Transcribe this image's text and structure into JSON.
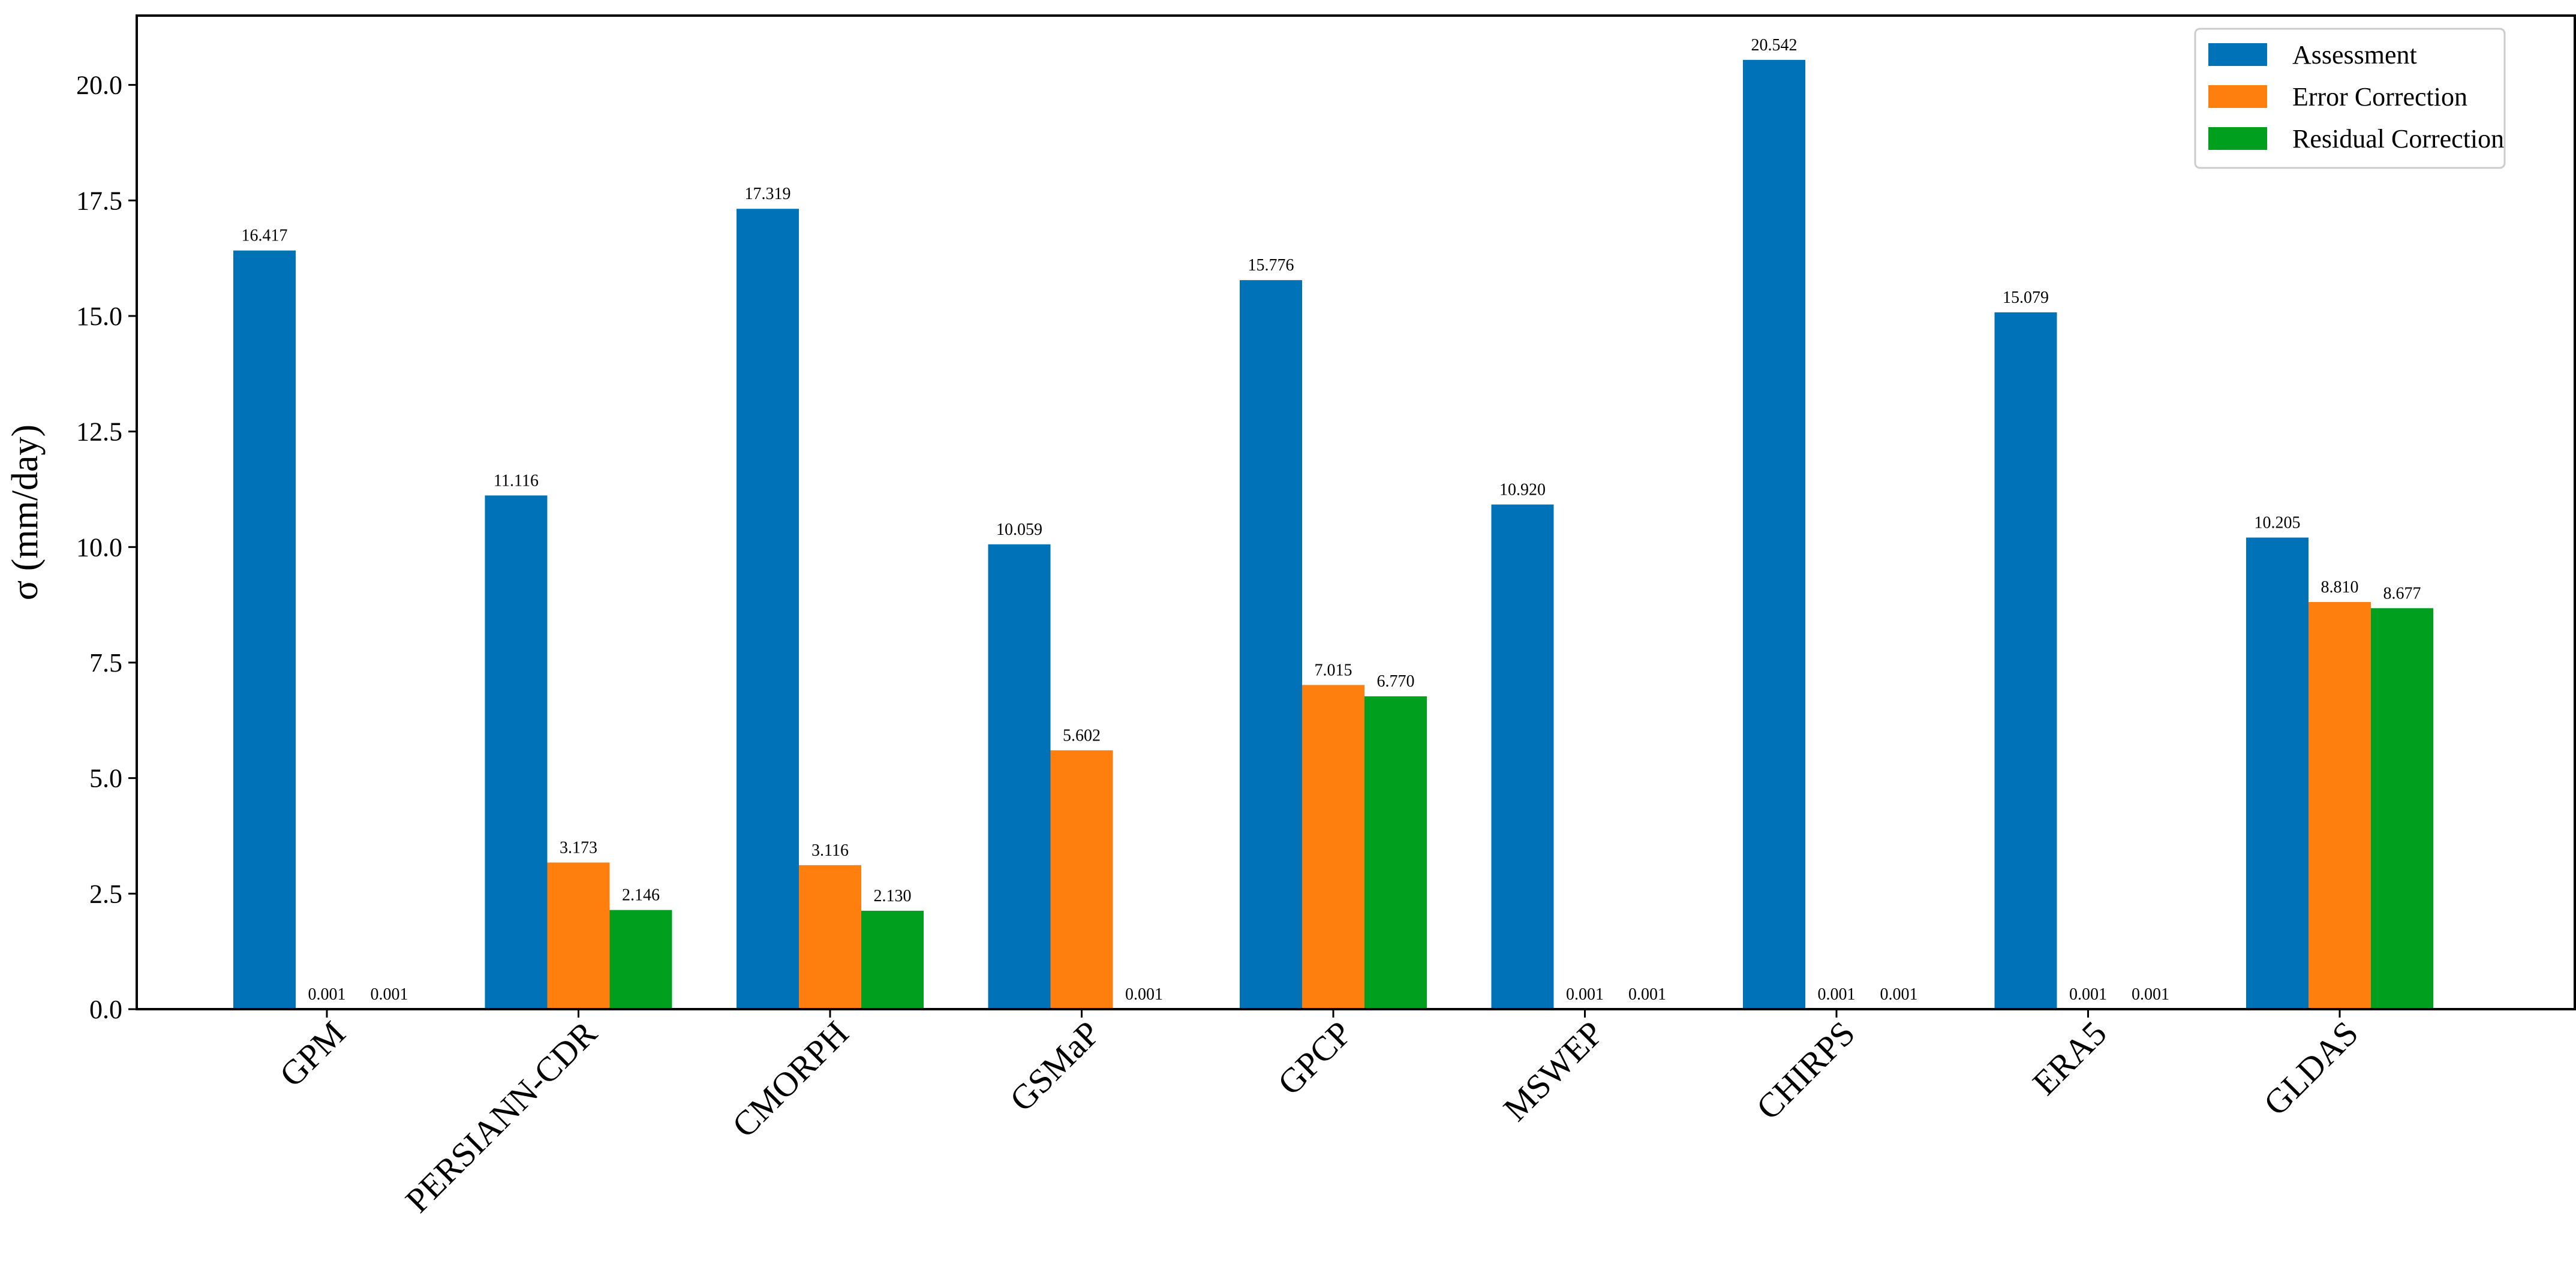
{
  "chart_data": {
    "type": "bar",
    "title": "",
    "xlabel": "",
    "ylabel": "σ (mm/day)",
    "ylim": [
      0,
      21.5
    ],
    "yticks": [
      "0.0",
      "2.5",
      "5.0",
      "7.5",
      "10.0",
      "12.5",
      "15.0",
      "17.5",
      "20.0"
    ],
    "ytick_values": [
      0,
      2.5,
      5,
      7.5,
      10,
      12.5,
      15,
      17.5,
      20
    ],
    "categories": [
      "GPM",
      "PERSIANN-CDR",
      "CMORPH",
      "GSMaP",
      "GPCP",
      "MSWEP",
      "CHIRPS",
      "ERA5",
      "GLDAS"
    ],
    "series": [
      {
        "name": "Assessment",
        "color": "#0072b8",
        "values": [
          16.417,
          11.116,
          17.319,
          10.059,
          15.776,
          10.92,
          20.542,
          15.079,
          10.205
        ],
        "labels": [
          "16.417",
          "11.116",
          "17.319",
          "10.059",
          "15.776",
          "10.920",
          "20.542",
          "15.079",
          "10.205"
        ]
      },
      {
        "name": "Error Correction",
        "color": "#ff7f0e",
        "values": [
          0.001,
          3.173,
          3.116,
          5.602,
          7.015,
          0.001,
          0.001,
          0.001,
          8.81
        ],
        "labels": [
          "0.001",
          "3.173",
          "3.116",
          "5.602",
          "7.015",
          "0.001",
          "0.001",
          "0.001",
          "8.810"
        ]
      },
      {
        "name": "Residual Correction",
        "color": "#00a01e",
        "values": [
          0.001,
          2.146,
          2.13,
          0.001,
          6.77,
          0.001,
          0.001,
          0.001,
          8.677
        ],
        "labels": [
          "0.001",
          "2.146",
          "2.130",
          "0.001",
          "6.770",
          "0.001",
          "0.001",
          "0.001",
          "8.677"
        ]
      }
    ],
    "legend_position": "top-right",
    "grid": false
  }
}
